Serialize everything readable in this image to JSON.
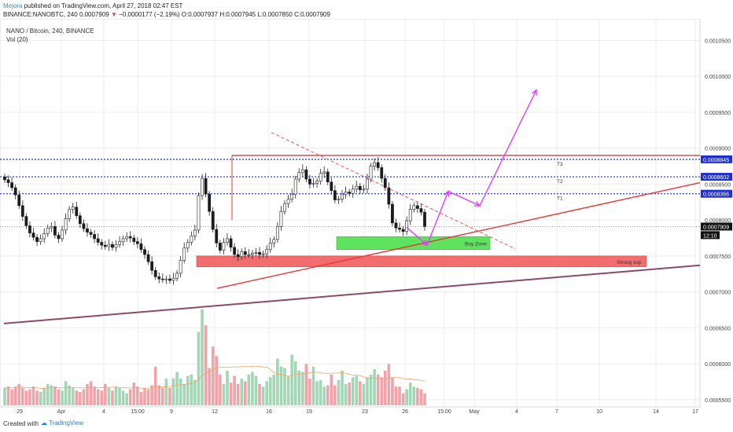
{
  "header": {
    "author": "Mejora",
    "publish_text": " published on TradingView.com, April 27, 2018 02:47 EST",
    "symbol_line": "BINANCE:NANOBTC, 240",
    "last_price": "0.0007909",
    "change_arrow": "▼",
    "change": "−0.0000177 (−2.19%)",
    "ohlc": {
      "o_label": "O:",
      "o": "0.0007937",
      "h_label": "H:",
      "h": "0.0007945",
      "l_label": "L:",
      "l": "0.0007850",
      "c_label": "C:",
      "c": "0.0007909"
    }
  },
  "legend": {
    "title": "NANO / Bitcoin, 240, BINANCE",
    "volume": "Vol (20)"
  },
  "footer": {
    "created_with": "Created with",
    "brand": "TradingView"
  },
  "colors": {
    "up": "#4f4f4f",
    "down": "#1a1a1a",
    "vol_up": "#a3d6b5",
    "vol_down": "#f0a3a8",
    "resistance": "#e53935",
    "trend": "#e53935",
    "long_trend": "#8e4a6a",
    "level_line": "#1f2fd6",
    "projection": "#e040fb",
    "buy_zone": "#5fe35f",
    "strong_sup": "#f26d6d",
    "dashed_trend": "#ef5350"
  },
  "chart_data": {
    "type": "candlestick",
    "y_axis": {
      "ticks": [
        "0.0010500",
        "0.0010000",
        "0.0009500",
        "0.0009000",
        "0.0008500",
        "0.0008000",
        "0.0007500",
        "0.0007000",
        "0.0006500",
        "0.0006000",
        "0.0005500"
      ],
      "ylim": [
        0.00054,
        0.00108
      ]
    },
    "x_axis": {
      "ticks": [
        "29",
        "Apr",
        "4",
        "15:00",
        "9",
        "12",
        "16",
        "19",
        "23",
        "26",
        "15:00",
        "May",
        "4",
        "7",
        "10",
        "14",
        "17"
      ]
    },
    "price_labels": [
      {
        "text": "0.0008845",
        "value": 0.0008845,
        "highlight": true
      },
      {
        "text": "0.0008602",
        "value": 0.0008602,
        "highlight": true
      },
      {
        "text": "0.0008366",
        "value": 0.0008366,
        "highlight": true
      },
      {
        "text": "0.0007909",
        "value": 0.0007909,
        "highlight": false,
        "dark": true
      },
      {
        "text": "12:10",
        "value": 0.000779,
        "dark": true
      }
    ],
    "annotations": {
      "level_labels": [
        {
          "text": "T3",
          "value": 0.0008845
        },
        {
          "text": "T2",
          "value": 0.0008602
        },
        {
          "text": "T1",
          "value": 0.0008366
        }
      ],
      "zones": [
        {
          "text": "Buy Zone",
          "from": 0.000777,
          "to": 0.000759
        },
        {
          "text": "Strong sup",
          "from": 0.00075,
          "to": 0.000735
        }
      ]
    },
    "series": [
      {
        "name": "NANOBTC",
        "close": [
          0.000856,
          0.000852,
          0.000845,
          0.000835,
          0.00082,
          0.000805,
          0.000792,
          0.000782,
          0.000776,
          0.00077,
          0.000774,
          0.000781,
          0.000789,
          0.000791,
          0.000779,
          0.000774,
          0.000786,
          0.000802,
          0.000815,
          0.000818,
          0.000806,
          0.000795,
          0.000788,
          0.000783,
          0.00078,
          0.000774,
          0.000769,
          0.000765,
          0.000763,
          0.000766,
          0.000762,
          0.000766,
          0.00077,
          0.000774,
          0.000777,
          0.000775,
          0.00077,
          0.000767,
          0.000759,
          0.000752,
          0.000742,
          0.00073,
          0.000721,
          0.000718,
          0.000717,
          0.000718,
          0.000716,
          0.000719,
          0.000726,
          0.000744,
          0.000761,
          0.000769,
          0.000778,
          0.000786,
          0.000834,
          0.000858,
          0.000836,
          0.000812,
          0.000787,
          0.000768,
          0.000758,
          0.000769,
          0.000774,
          0.000762,
          0.000752,
          0.000749,
          0.000756,
          0.000752,
          0.000752,
          0.000754,
          0.000755,
          0.000752,
          0.000753,
          0.000759,
          0.000768,
          0.000773,
          0.000791,
          0.000812,
          0.000823,
          0.000829,
          0.000836,
          0.000857,
          0.000866,
          0.00087,
          0.000857,
          0.00085,
          0.000851,
          0.000854,
          0.000865,
          0.000867,
          0.000853,
          0.000841,
          0.000828,
          0.000829,
          0.000836,
          0.000839,
          0.000837,
          0.000843,
          0.000847,
          0.000842,
          0.000843,
          0.000857,
          0.000875,
          0.00088,
          0.000873,
          0.000858,
          0.000845,
          0.000822,
          0.000796,
          0.000789,
          0.000787,
          0.000784,
          0.000799,
          0.000815,
          0.00082,
          0.000816,
          0.000811,
          0.000791
        ]
      },
      {
        "name": "Vol (20)",
        "values": [
          13,
          14,
          12,
          14,
          16,
          13,
          11,
          12,
          14,
          11,
          10,
          13,
          16,
          15,
          14,
          12,
          11,
          18,
          15,
          13,
          11,
          10,
          12,
          16,
          18,
          14,
          12,
          11,
          16,
          13,
          11,
          14,
          13,
          11,
          9,
          12,
          17,
          14,
          10,
          13,
          12,
          15,
          29,
          15,
          13,
          20,
          13,
          20,
          25,
          20,
          16,
          22,
          23,
          19,
          55,
          72,
          60,
          28,
          44,
          37,
          23,
          16,
          26,
          17,
          22,
          16,
          20,
          18,
          23,
          25,
          22,
          16,
          14,
          18,
          21,
          23,
          35,
          29,
          28,
          22,
          38,
          33,
          26,
          25,
          31,
          20,
          29,
          18,
          19,
          14,
          15,
          23,
          15,
          19,
          26,
          16,
          17,
          21,
          22,
          18,
          16,
          21,
          23,
          27,
          23,
          21,
          26,
          31,
          21,
          14,
          14,
          9,
          12,
          17,
          14,
          13,
          12,
          9
        ]
      }
    ]
  }
}
